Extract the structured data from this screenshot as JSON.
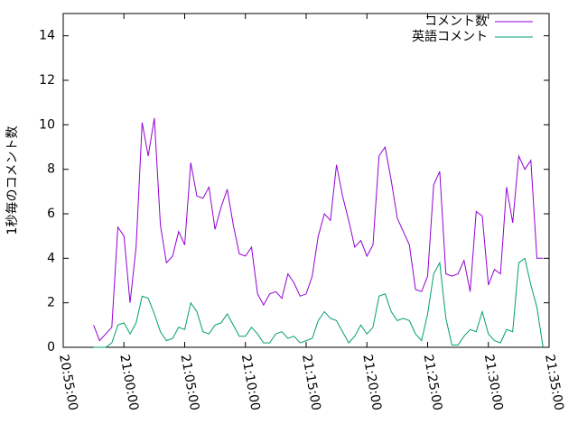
{
  "chart_data": {
    "type": "line",
    "y_label": "1秒毎のコメント数",
    "xlim": [
      "20:55:00",
      "21:35:00"
    ],
    "xticks": [
      "20:55:00",
      "21:00:00",
      "21:05:00",
      "21:10:00",
      "21:15:00",
      "21:20:00",
      "21:25:00",
      "21:30:00",
      "21:35:00"
    ],
    "ylim": [
      0,
      15
    ],
    "yticks": [
      0,
      2,
      4,
      6,
      8,
      10,
      12,
      14
    ],
    "legend": "top-right",
    "x": [
      "20:57:30",
      "20:58:00",
      "20:58:30",
      "20:59:00",
      "20:59:30",
      "21:00:00",
      "21:00:30",
      "21:01:00",
      "21:01:30",
      "21:02:00",
      "21:02:30",
      "21:03:00",
      "21:03:30",
      "21:04:00",
      "21:04:30",
      "21:05:00",
      "21:05:30",
      "21:06:00",
      "21:06:30",
      "21:07:00",
      "21:07:30",
      "21:08:00",
      "21:08:30",
      "21:09:00",
      "21:09:30",
      "21:10:00",
      "21:10:30",
      "21:11:00",
      "21:11:30",
      "21:12:00",
      "21:12:30",
      "21:13:00",
      "21:13:30",
      "21:14:00",
      "21:14:30",
      "21:15:00",
      "21:15:30",
      "21:16:00",
      "21:16:30",
      "21:17:00",
      "21:17:30",
      "21:18:00",
      "21:18:30",
      "21:19:00",
      "21:19:30",
      "21:20:00",
      "21:20:30",
      "21:21:00",
      "21:21:30",
      "21:22:00",
      "21:22:30",
      "21:23:00",
      "21:23:30",
      "21:24:00",
      "21:24:30",
      "21:25:00",
      "21:25:30",
      "21:26:00",
      "21:26:30",
      "21:27:00",
      "21:27:30",
      "21:28:00",
      "21:28:30",
      "21:29:00",
      "21:29:30",
      "21:30:00",
      "21:30:30",
      "21:31:00",
      "21:31:30",
      "21:32:00",
      "21:32:30",
      "21:33:00",
      "21:33:30",
      "21:34:00",
      "21:34:30"
    ],
    "series": [
      {
        "name": "コメント数",
        "color": "#9400d3",
        "values": [
          1.0,
          0.3,
          0.6,
          0.9,
          5.4,
          5.0,
          2.0,
          4.5,
          10.1,
          8.6,
          10.3,
          5.5,
          3.8,
          4.1,
          5.2,
          4.6,
          8.3,
          6.8,
          6.7,
          7.2,
          5.3,
          6.3,
          7.1,
          5.5,
          4.2,
          4.1,
          4.5,
          2.4,
          1.9,
          2.4,
          2.5,
          2.2,
          3.3,
          2.9,
          2.3,
          2.4,
          3.2,
          5.0,
          6.0,
          5.7,
          8.2,
          6.8,
          5.7,
          4.5,
          4.8,
          4.1,
          4.6,
          8.6,
          9.0,
          7.5,
          5.8,
          5.2,
          4.6,
          2.6,
          2.5,
          3.2,
          7.3,
          7.9,
          3.3,
          3.2,
          3.3,
          3.9,
          2.5,
          6.1,
          5.9,
          2.8,
          3.5,
          3.3,
          7.2,
          5.6,
          8.6,
          8.0,
          8.4,
          4.0,
          4.0
        ]
      },
      {
        "name": "英語コメント",
        "color": "#009e73",
        "values": [
          0.0,
          0.0,
          0.0,
          0.2,
          1.0,
          1.1,
          0.6,
          1.1,
          2.3,
          2.2,
          1.5,
          0.7,
          0.3,
          0.4,
          0.9,
          0.8,
          2.0,
          1.6,
          0.7,
          0.6,
          1.0,
          1.1,
          1.5,
          1.0,
          0.5,
          0.5,
          0.9,
          0.6,
          0.2,
          0.2,
          0.6,
          0.7,
          0.4,
          0.5,
          0.2,
          0.3,
          0.4,
          1.2,
          1.6,
          1.3,
          1.2,
          0.7,
          0.2,
          0.5,
          1.0,
          0.6,
          0.9,
          2.3,
          2.4,
          1.6,
          1.2,
          1.3,
          1.2,
          0.6,
          0.3,
          1.5,
          3.3,
          3.8,
          1.3,
          0.1,
          0.1,
          0.5,
          0.8,
          0.7,
          1.6,
          0.6,
          0.3,
          0.2,
          0.8,
          0.7,
          3.8,
          4.0,
          2.8,
          1.8,
          0.0
        ]
      }
    ]
  }
}
